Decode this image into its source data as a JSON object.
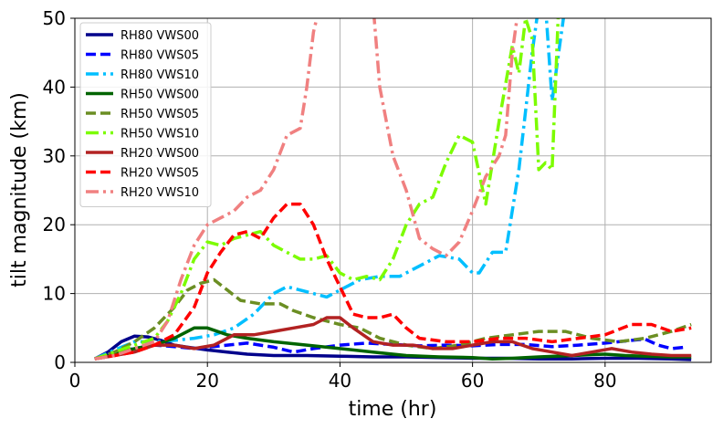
{
  "chart_data": {
    "type": "line",
    "xlabel": "time (hr)",
    "ylabel": "tilt magnitude (km)",
    "xlim": [
      0,
      96
    ],
    "ylim": [
      0,
      50
    ],
    "xticks": [
      "0",
      "20",
      "40",
      "60",
      "80"
    ],
    "xtick_values": [
      0,
      20,
      40,
      60,
      80
    ],
    "yticks": [
      "0",
      "10",
      "20",
      "30",
      "40",
      "50"
    ],
    "ytick_values": [
      0,
      10,
      20,
      30,
      40,
      50
    ],
    "grid": true,
    "legend_position": "upper-left",
    "series": [
      {
        "name": "RH80 VWS00",
        "color": "#00008b",
        "dash": "solid",
        "points": [
          [
            3,
            0.5
          ],
          [
            5,
            1.5
          ],
          [
            7,
            3
          ],
          [
            9,
            3.8
          ],
          [
            11,
            3.7
          ],
          [
            13,
            3.2
          ],
          [
            15,
            2.5
          ],
          [
            17,
            2.2
          ],
          [
            20,
            1.8
          ],
          [
            23,
            1.5
          ],
          [
            26,
            1.2
          ],
          [
            30,
            1.0
          ],
          [
            35,
            1.0
          ],
          [
            40,
            0.9
          ],
          [
            45,
            0.8
          ],
          [
            50,
            0.8
          ],
          [
            55,
            0.7
          ],
          [
            60,
            0.6
          ],
          [
            65,
            0.6
          ],
          [
            70,
            0.5
          ],
          [
            75,
            0.5
          ],
          [
            80,
            0.6
          ],
          [
            85,
            0.6
          ],
          [
            90,
            0.5
          ],
          [
            93,
            0.4
          ]
        ]
      },
      {
        "name": "RH80 VWS05",
        "color": "#0000ff",
        "dash": "dashed",
        "points": [
          [
            3,
            0.5
          ],
          [
            6,
            1.5
          ],
          [
            9,
            2.0
          ],
          [
            12,
            2.5
          ],
          [
            15,
            2.3
          ],
          [
            18,
            2.0
          ],
          [
            20,
            2.2
          ],
          [
            23,
            2.5
          ],
          [
            26,
            2.8
          ],
          [
            30,
            2.2
          ],
          [
            33,
            1.5
          ],
          [
            36,
            2.0
          ],
          [
            40,
            2.5
          ],
          [
            44,
            2.8
          ],
          [
            48,
            2.6
          ],
          [
            52,
            2.4
          ],
          [
            56,
            2.5
          ],
          [
            60,
            2.4
          ],
          [
            64,
            2.6
          ],
          [
            68,
            2.6
          ],
          [
            72,
            2.3
          ],
          [
            76,
            2.5
          ],
          [
            80,
            2.8
          ],
          [
            84,
            3.2
          ],
          [
            86,
            3.4
          ],
          [
            88,
            2.5
          ],
          [
            90,
            2.0
          ],
          [
            92,
            2.2
          ]
        ]
      },
      {
        "name": "RH80 VWS10",
        "color": "#00bfff",
        "dash": "dashdot",
        "points": [
          [
            3,
            0.5
          ],
          [
            6,
            1.8
          ],
          [
            9,
            3.0
          ],
          [
            12,
            3.0
          ],
          [
            15,
            3.2
          ],
          [
            18,
            3.5
          ],
          [
            21,
            4.0
          ],
          [
            24,
            5.0
          ],
          [
            27,
            7.0
          ],
          [
            30,
            10.0
          ],
          [
            32,
            11.0
          ],
          [
            34,
            10.5
          ],
          [
            36,
            10.0
          ],
          [
            38,
            9.5
          ],
          [
            40,
            10.5
          ],
          [
            43,
            12.0
          ],
          [
            46,
            12.5
          ],
          [
            49,
            12.5
          ],
          [
            52,
            14.0
          ],
          [
            55,
            15.5
          ],
          [
            58,
            15.0
          ],
          [
            60,
            13.0
          ],
          [
            61,
            13.0
          ],
          [
            63,
            16.0
          ],
          [
            65,
            16.0
          ],
          [
            67,
            28.0
          ],
          [
            69,
            45.0
          ],
          [
            70,
            52.0
          ],
          [
            71,
            52.0
          ],
          [
            72,
            38.0
          ],
          [
            73,
            45.0
          ],
          [
            74,
            52.0
          ]
        ]
      },
      {
        "name": "RH50 VWS00",
        "color": "#006400",
        "dash": "solid",
        "points": [
          [
            3,
            0.5
          ],
          [
            6,
            1.2
          ],
          [
            9,
            2.0
          ],
          [
            12,
            2.5
          ],
          [
            15,
            3.5
          ],
          [
            18,
            5.0
          ],
          [
            20,
            5.0
          ],
          [
            23,
            4.0
          ],
          [
            26,
            3.5
          ],
          [
            30,
            3.0
          ],
          [
            35,
            2.5
          ],
          [
            40,
            2.0
          ],
          [
            45,
            1.5
          ],
          [
            50,
            1.0
          ],
          [
            55,
            0.8
          ],
          [
            60,
            0.7
          ],
          [
            63,
            0.5
          ],
          [
            66,
            0.6
          ],
          [
            70,
            0.8
          ],
          [
            75,
            1.0
          ],
          [
            80,
            1.2
          ],
          [
            83,
            1.0
          ],
          [
            86,
            0.9
          ],
          [
            90,
            0.8
          ],
          [
            93,
            0.8
          ]
        ]
      },
      {
        "name": "RH50 VWS05",
        "color": "#6b8e23",
        "dash": "dashed",
        "points": [
          [
            3,
            0.5
          ],
          [
            6,
            1.5
          ],
          [
            9,
            3.0
          ],
          [
            12,
            5.0
          ],
          [
            15,
            8.0
          ],
          [
            17,
            10.5
          ],
          [
            19,
            11.5
          ],
          [
            21,
            12.0
          ],
          [
            23,
            10.5
          ],
          [
            25,
            9.0
          ],
          [
            28,
            8.5
          ],
          [
            31,
            8.5
          ],
          [
            33,
            7.5
          ],
          [
            36,
            6.5
          ],
          [
            40,
            5.5
          ],
          [
            43,
            5.0
          ],
          [
            46,
            3.5
          ],
          [
            50,
            2.5
          ],
          [
            54,
            2.0
          ],
          [
            58,
            2.5
          ],
          [
            62,
            3.5
          ],
          [
            66,
            4.0
          ],
          [
            70,
            4.5
          ],
          [
            74,
            4.5
          ],
          [
            78,
            3.5
          ],
          [
            82,
            3.0
          ],
          [
            86,
            3.5
          ],
          [
            90,
            4.5
          ],
          [
            93,
            5.5
          ]
        ]
      },
      {
        "name": "RH50 VWS10",
        "color": "#7cfc00",
        "dash": "dashdot",
        "points": [
          [
            3,
            0.5
          ],
          [
            6,
            1.5
          ],
          [
            9,
            2.5
          ],
          [
            12,
            3.5
          ],
          [
            14,
            6.0
          ],
          [
            16,
            10.0
          ],
          [
            18,
            15.0
          ],
          [
            20,
            17.5
          ],
          [
            22,
            17.0
          ],
          [
            24,
            18.0
          ],
          [
            26,
            18.5
          ],
          [
            28,
            19.0
          ],
          [
            30,
            17.0
          ],
          [
            32,
            16.0
          ],
          [
            34,
            15.0
          ],
          [
            36,
            15.0
          ],
          [
            38,
            15.5
          ],
          [
            40,
            13.0
          ],
          [
            42,
            12.0
          ],
          [
            44,
            12.5
          ],
          [
            46,
            12.0
          ],
          [
            48,
            15.0
          ],
          [
            50,
            20.0
          ],
          [
            52,
            23.0
          ],
          [
            54,
            24.0
          ],
          [
            56,
            29.0
          ],
          [
            58,
            33.0
          ],
          [
            60,
            32.0
          ],
          [
            62,
            23.0
          ],
          [
            64,
            35.0
          ],
          [
            66,
            46.0
          ],
          [
            67,
            42.0
          ],
          [
            68,
            50.0
          ],
          [
            69,
            47.0
          ],
          [
            70,
            28.0
          ],
          [
            71,
            29.0
          ],
          [
            72,
            28.0
          ],
          [
            73,
            52.0
          ]
        ]
      },
      {
        "name": "RH20 VWS00",
        "color": "#b22222",
        "dash": "solid",
        "points": [
          [
            3,
            0.5
          ],
          [
            6,
            1.0
          ],
          [
            9,
            1.5
          ],
          [
            12,
            2.5
          ],
          [
            15,
            2.5
          ],
          [
            18,
            2.0
          ],
          [
            21,
            2.5
          ],
          [
            24,
            4.0
          ],
          [
            27,
            4.0
          ],
          [
            30,
            4.5
          ],
          [
            33,
            5.0
          ],
          [
            36,
            5.5
          ],
          [
            38,
            6.5
          ],
          [
            40,
            6.5
          ],
          [
            42,
            5.0
          ],
          [
            45,
            3.0
          ],
          [
            48,
            2.5
          ],
          [
            51,
            2.5
          ],
          [
            54,
            2.0
          ],
          [
            57,
            2.0
          ],
          [
            60,
            2.5
          ],
          [
            63,
            3.0
          ],
          [
            66,
            3.0
          ],
          [
            69,
            2.0
          ],
          [
            72,
            1.5
          ],
          [
            75,
            1.0
          ],
          [
            78,
            1.5
          ],
          [
            81,
            2.0
          ],
          [
            84,
            1.5
          ],
          [
            87,
            1.2
          ],
          [
            90,
            1.0
          ],
          [
            93,
            1.0
          ]
        ]
      },
      {
        "name": "RH20 VWS05",
        "color": "#ff0000",
        "dash": "dashed",
        "points": [
          [
            3,
            0.5
          ],
          [
            6,
            1.0
          ],
          [
            9,
            1.5
          ],
          [
            12,
            2.5
          ],
          [
            15,
            4.0
          ],
          [
            18,
            8.0
          ],
          [
            20,
            13.0
          ],
          [
            22,
            16.0
          ],
          [
            24,
            18.5
          ],
          [
            26,
            19.0
          ],
          [
            28,
            18.0
          ],
          [
            30,
            21.0
          ],
          [
            32,
            23.0
          ],
          [
            34,
            23.0
          ],
          [
            36,
            20.0
          ],
          [
            38,
            15.0
          ],
          [
            40,
            11.0
          ],
          [
            42,
            7.0
          ],
          [
            44,
            6.5
          ],
          [
            46,
            6.5
          ],
          [
            48,
            7.0
          ],
          [
            50,
            5.0
          ],
          [
            52,
            3.5
          ],
          [
            56,
            3.0
          ],
          [
            60,
            3.0
          ],
          [
            64,
            3.5
          ],
          [
            68,
            3.5
          ],
          [
            72,
            3.0
          ],
          [
            76,
            3.5
          ],
          [
            80,
            4.0
          ],
          [
            84,
            5.5
          ],
          [
            87,
            5.5
          ],
          [
            90,
            4.5
          ],
          [
            93,
            5.0
          ]
        ]
      },
      {
        "name": "RH20 VWS10",
        "color": "#f08080",
        "dash": "dashdot",
        "points": [
          [
            3,
            0.5
          ],
          [
            6,
            1.0
          ],
          [
            9,
            2.0
          ],
          [
            12,
            3.0
          ],
          [
            14,
            6.0
          ],
          [
            16,
            12.0
          ],
          [
            18,
            17.0
          ],
          [
            20,
            20.0
          ],
          [
            22,
            21.0
          ],
          [
            24,
            22.0
          ],
          [
            26,
            24.0
          ],
          [
            28,
            25.0
          ],
          [
            30,
            28.0
          ],
          [
            32,
            33.0
          ],
          [
            34,
            34.0
          ],
          [
            35,
            40.0
          ],
          [
            36,
            48.0
          ],
          [
            37,
            52.0
          ],
          [
            45,
            52.0
          ],
          [
            46,
            40.0
          ],
          [
            48,
            30.0
          ],
          [
            50,
            25.0
          ],
          [
            52,
            18.0
          ],
          [
            54,
            16.5
          ],
          [
            56,
            15.5
          ],
          [
            58,
            17.5
          ],
          [
            60,
            22.0
          ],
          [
            62,
            27.0
          ],
          [
            64,
            30.0
          ],
          [
            65,
            33.0
          ],
          [
            66,
            45.0
          ],
          [
            67,
            52.0
          ]
        ]
      }
    ]
  }
}
